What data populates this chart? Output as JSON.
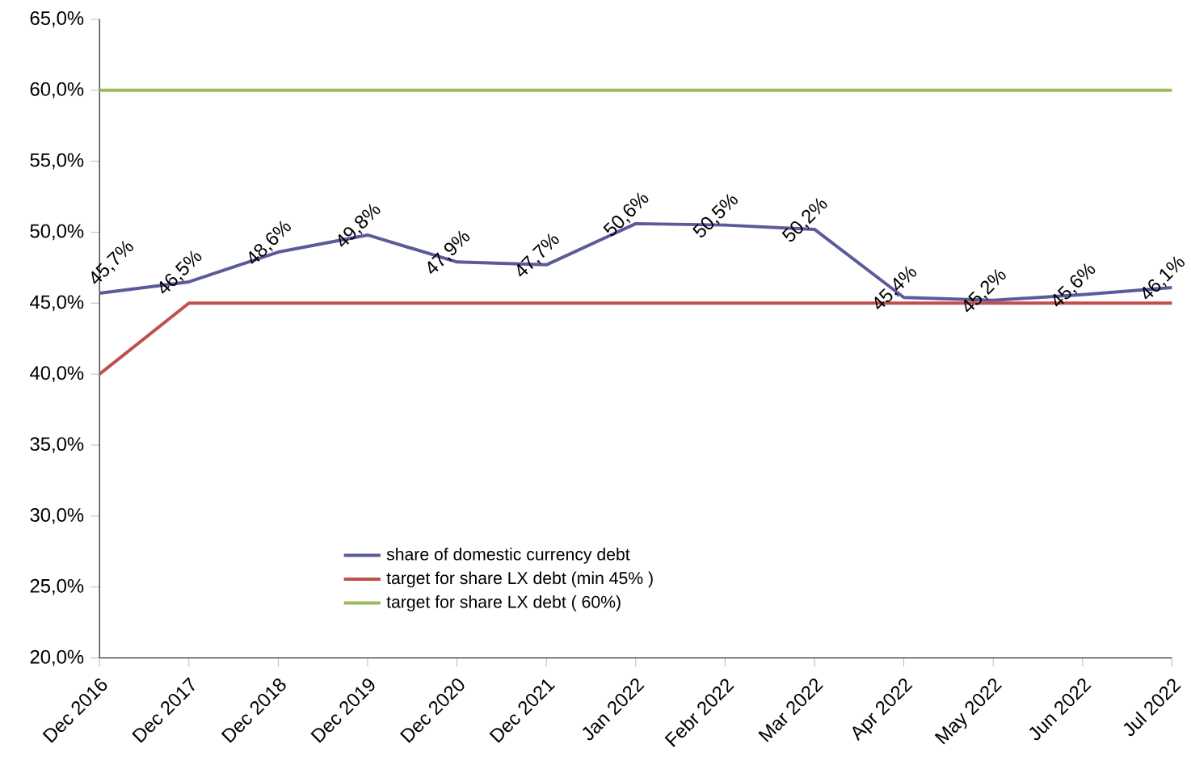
{
  "chart_data": {
    "type": "line",
    "categories": [
      "Dec 2016",
      "Dec 2017",
      "Dec 2018",
      "Dec 2019",
      "Dec 2020",
      "Dec 2021",
      "Jan 2022",
      "Febr 2022",
      "Mar 2022",
      "Apr 2022",
      "May 2022",
      "Jun 2022",
      "Jul 2022"
    ],
    "series": [
      {
        "name": "share of domestic currency debt",
        "color": "#5b5b9b",
        "values": [
          45.7,
          46.5,
          48.6,
          49.8,
          47.9,
          47.7,
          50.6,
          50.5,
          50.2,
          45.4,
          45.2,
          45.6,
          46.1
        ],
        "value_labels": [
          "45,7%",
          "46,5%",
          "48,6%",
          "49,8%",
          "47,9%",
          "47,7%",
          "50,6%",
          "50,5%",
          "50,2%",
          "45,4%",
          "45,2%",
          "45,6%",
          "46,1%"
        ]
      },
      {
        "name": "target for share LX debt (min 45% )",
        "color": "#c0504d",
        "values": [
          40,
          45,
          45,
          45,
          45,
          45,
          45,
          45,
          45,
          45,
          45,
          45,
          45
        ]
      },
      {
        "name": "target for share LX debt ( 60%)",
        "color": "#9bbb59",
        "values": [
          60,
          60,
          60,
          60,
          60,
          60,
          60,
          60,
          60,
          60,
          60,
          60,
          60
        ]
      }
    ],
    "ylim": [
      20,
      65
    ],
    "yticks": [
      {
        "value": 20,
        "label": "20,0%"
      },
      {
        "value": 25,
        "label": "25,0%"
      },
      {
        "value": 30,
        "label": "30,0%"
      },
      {
        "value": 35,
        "label": "35,0%"
      },
      {
        "value": 40,
        "label": "40,0%"
      },
      {
        "value": 45,
        "label": "45,0%"
      },
      {
        "value": 50,
        "label": "50,0%"
      },
      {
        "value": 55,
        "label": "55,0%"
      },
      {
        "value": 60,
        "label": "60,0%"
      },
      {
        "value": 65,
        "label": "65,0%"
      }
    ],
    "grid": false,
    "legend": "bottom left",
    "marker": "none"
  }
}
